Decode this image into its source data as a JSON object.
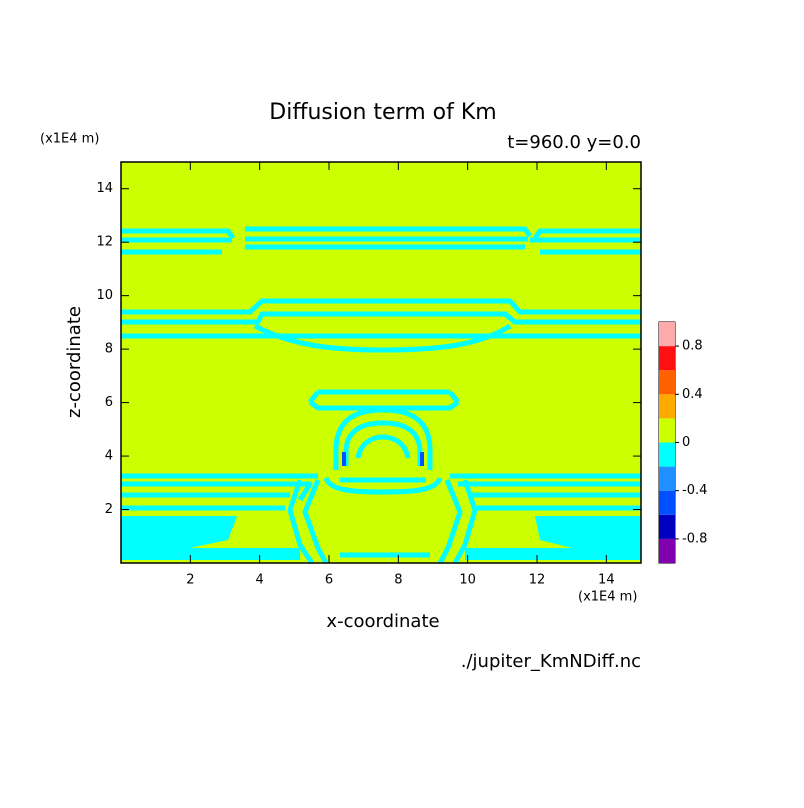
{
  "chart_data": {
    "type": "contour",
    "title": "Diffusion term of Km",
    "subtitle": "t=960.0 y=0.0",
    "x_label": "x-coordinate",
    "y_label": "z-coordinate",
    "x_unit": "(x1E4 m)",
    "y_unit": "(x1E4 m)",
    "source": "./jupiter_KmNDiff.nc",
    "xlim": [
      0,
      15
    ],
    "xticks": [
      2,
      4,
      6,
      8,
      10,
      12,
      14
    ],
    "ylim": [
      0,
      15
    ],
    "yticks": [
      2,
      4,
      6,
      8,
      10,
      12,
      14
    ],
    "colorbar": {
      "levels": [
        -1,
        -0.8,
        -0.6,
        -0.4,
        -0.2,
        0,
        0.2,
        0.4,
        0.6,
        0.8,
        1
      ],
      "colors": [
        "#8000b0",
        "#0000c0",
        "#0050ff",
        "#1e90ff",
        "#00ffff",
        "#ccff00",
        "#ffaa00",
        "#ff6000",
        "#ff1010",
        "#ffaaaa"
      ],
      "ticks": [
        -0.8,
        -0.4,
        0,
        0.4,
        0.8
      ]
    }
  }
}
